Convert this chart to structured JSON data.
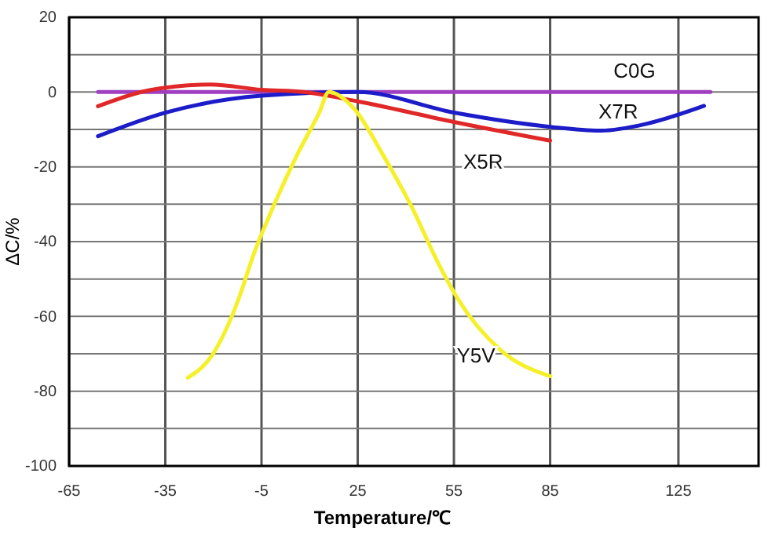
{
  "chart_data": {
    "type": "line",
    "xlabel": "Temperature/℃",
    "ylabel": "ΔC/%",
    "xlim": [
      -65,
      150
    ],
    "xticks": [
      -65,
      -35,
      -5,
      25,
      55,
      85,
      125
    ],
    "ylim": [
      -100,
      20
    ],
    "yticks": [
      -100,
      {
        "value": -90,
        "label": null
      },
      -80,
      {
        "value": -70,
        "label": null
      },
      -60,
      {
        "value": -50,
        "label": null
      },
      -40,
      {
        "value": -30,
        "label": null
      },
      -20,
      {
        "value": -10,
        "label": null
      },
      0,
      {
        "value": 10,
        "label": null
      },
      20
    ],
    "grid": true,
    "legend": false,
    "marker": "none",
    "line_style": "solid",
    "series": [
      {
        "name": "C0G",
        "color": "#a040c0",
        "x": [
          -56,
          135
        ],
        "values": [
          0,
          0
        ]
      },
      {
        "name": "X7R",
        "color": "#1c1cc8",
        "x": [
          -56,
          -35,
          -5,
          25,
          55,
          85,
          101,
          115,
          133
        ],
        "values": [
          -11.8,
          -5.5,
          -1,
          0,
          -5.5,
          -9.3,
          -10.3,
          -8.5,
          -3.7
        ]
      },
      {
        "name": "X5R",
        "color": "#e02828",
        "x": [
          -56,
          -40,
          -21,
          -5,
          8,
          25,
          55,
          85
        ],
        "values": [
          -3.8,
          0.5,
          2,
          0.6,
          0,
          -2.5,
          -8,
          -13
        ]
      },
      {
        "name": "Y5V",
        "color": "#f5f02a",
        "x": [
          -28,
          -20.5,
          -12,
          -7.7,
          -1,
          6,
          13,
          16,
          24,
          33,
          42,
          50,
          56,
          69.5,
          85
        ],
        "values": [
          -76.4,
          -70.5,
          -55,
          -44,
          -30,
          -17,
          -5.5,
          0,
          -4.6,
          -17,
          -31,
          -45.6,
          -55,
          -69,
          -76
        ]
      }
    ]
  }
}
